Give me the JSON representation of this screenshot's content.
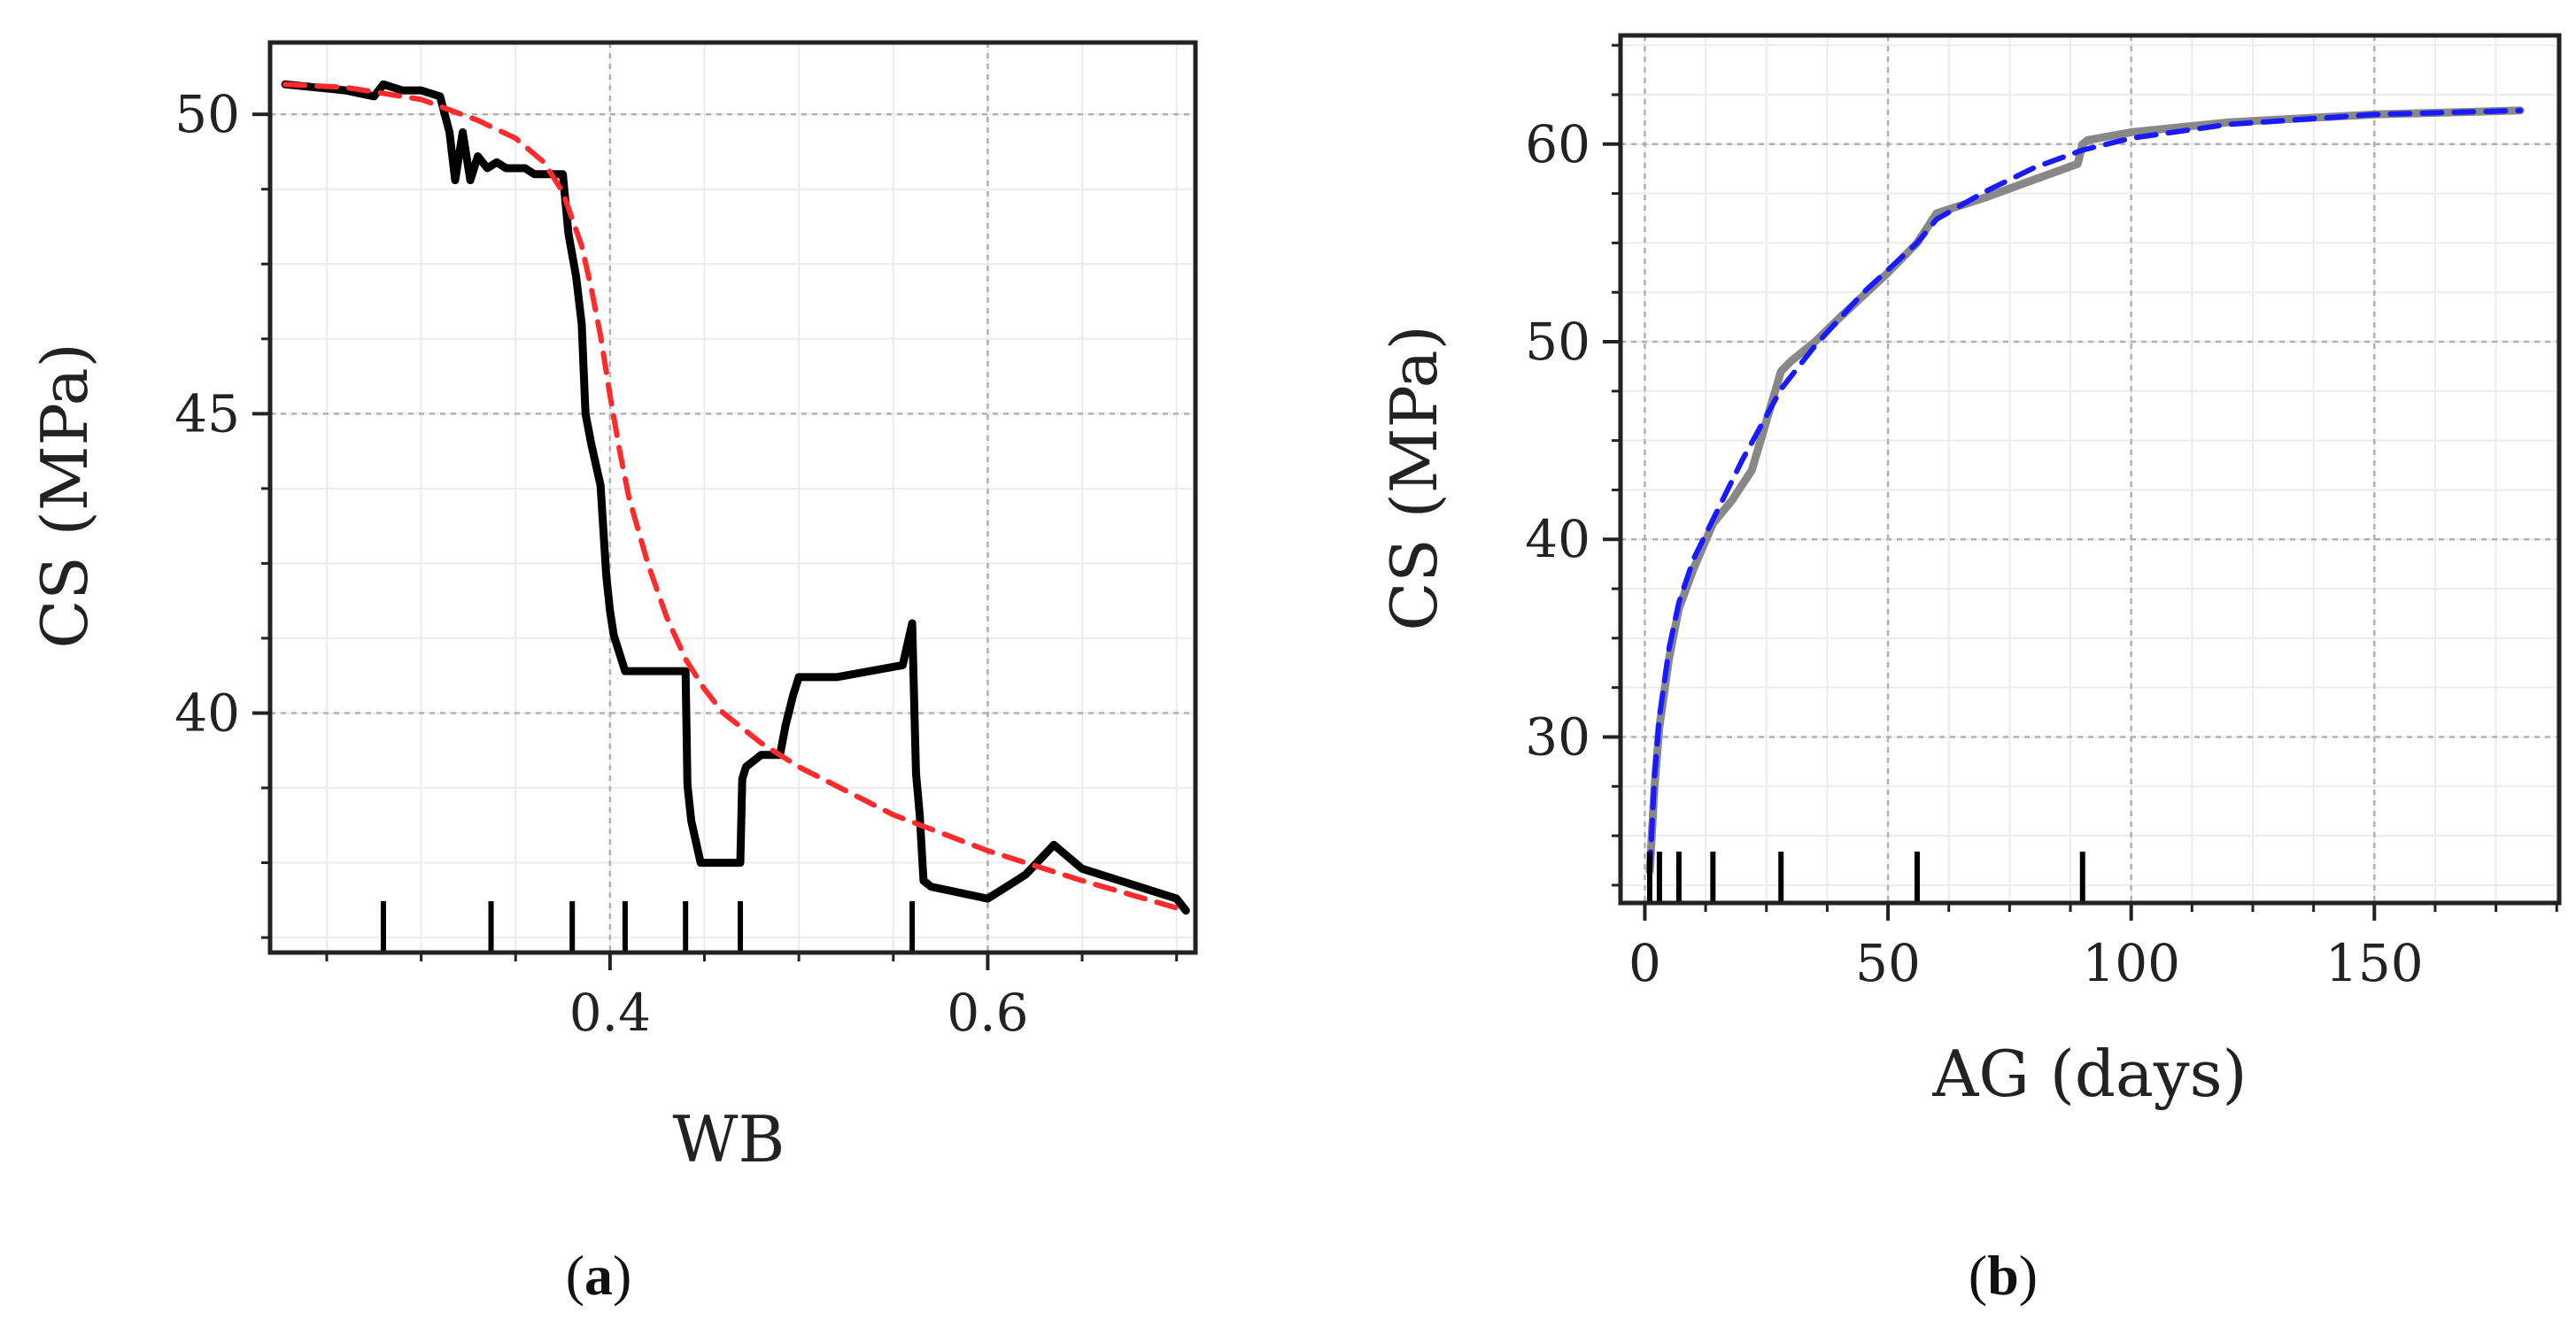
{
  "chart_data": [
    {
      "type": "line",
      "panel_label": "a",
      "xlabel": "WB",
      "ylabel": "CS (MPa)",
      "xlim": [
        0.22,
        0.71
      ],
      "ylim": [
        36.0,
        51.2
      ],
      "xticks": [
        0.4,
        0.6
      ],
      "xtick_labels": [
        "0.4",
        "0.6"
      ],
      "yticks": [
        40,
        45,
        50
      ],
      "ytick_labels": [
        "40",
        "45",
        "50"
      ],
      "grid": true,
      "rug": [
        0.28,
        0.337,
        0.38,
        0.408,
        0.44,
        0.469,
        0.56
      ],
      "series": [
        {
          "style": "solid",
          "color": "#000000",
          "x": [
            0.228,
            0.26,
            0.275,
            0.28,
            0.29,
            0.3,
            0.31,
            0.315,
            0.318,
            0.322,
            0.326,
            0.33,
            0.335,
            0.34,
            0.345,
            0.355,
            0.36,
            0.375,
            0.378,
            0.382,
            0.385,
            0.387,
            0.39,
            0.395,
            0.398,
            0.4,
            0.402,
            0.405,
            0.408,
            0.44,
            0.441,
            0.443,
            0.448,
            0.469,
            0.47,
            0.472,
            0.48,
            0.49,
            0.493,
            0.497,
            0.5,
            0.505,
            0.52,
            0.555,
            0.56,
            0.562,
            0.564,
            0.566,
            0.57,
            0.6,
            0.62,
            0.635,
            0.65,
            0.7,
            0.705
          ],
          "y": [
            50.5,
            50.4,
            50.3,
            50.5,
            50.4,
            50.4,
            50.3,
            49.7,
            48.9,
            49.7,
            48.9,
            49.3,
            49.1,
            49.2,
            49.1,
            49.1,
            49.0,
            49.0,
            48.0,
            47.3,
            46.5,
            45.0,
            44.5,
            43.8,
            42.3,
            41.7,
            41.3,
            41.0,
            40.7,
            40.7,
            38.8,
            38.2,
            37.5,
            37.5,
            38.9,
            39.1,
            39.3,
            39.3,
            39.8,
            40.3,
            40.6,
            40.6,
            40.6,
            40.8,
            41.5,
            39.0,
            38.3,
            37.2,
            37.1,
            36.9,
            37.3,
            37.8,
            37.4,
            36.9,
            36.7
          ]
        },
        {
          "style": "dashed",
          "color": "#ff2a2a",
          "x": [
            0.228,
            0.26,
            0.3,
            0.33,
            0.35,
            0.365,
            0.375,
            0.385,
            0.39,
            0.395,
            0.4,
            0.405,
            0.41,
            0.42,
            0.43,
            0.44,
            0.45,
            0.46,
            0.48,
            0.5,
            0.55,
            0.6,
            0.65,
            0.705
          ],
          "y": [
            50.5,
            50.45,
            50.25,
            49.9,
            49.6,
            49.2,
            48.7,
            47.8,
            47.1,
            46.3,
            45.3,
            44.4,
            43.6,
            42.5,
            41.6,
            40.9,
            40.4,
            40.0,
            39.5,
            39.1,
            38.3,
            37.7,
            37.2,
            36.7
          ]
        }
      ]
    },
    {
      "type": "line",
      "panel_label": "b",
      "xlabel": "AG (days)",
      "ylabel": "CS (MPa)",
      "xlim": [
        -5,
        188
      ],
      "ylim": [
        21.6,
        65.5
      ],
      "xticks": [
        0,
        50,
        100,
        150
      ],
      "xtick_labels": [
        "0",
        "50",
        "100",
        "150"
      ],
      "yticks": [
        30,
        40,
        50,
        60
      ],
      "ytick_labels": [
        "30",
        "40",
        "50",
        "60"
      ],
      "grid": true,
      "rug": [
        1,
        3,
        7,
        14,
        28,
        56,
        90
      ],
      "series": [
        {
          "style": "solid",
          "color": "#888888",
          "x": [
            1,
            2,
            3,
            5,
            7,
            10,
            14,
            18,
            22,
            25,
            28,
            30,
            35,
            40,
            50,
            56,
            60,
            70,
            80,
            89,
            90,
            91,
            100,
            120,
            150,
            180
          ],
          "y": [
            23.2,
            27.5,
            30.5,
            34.0,
            36.5,
            38.5,
            40.8,
            42.0,
            43.5,
            46.0,
            48.5,
            49.0,
            50.0,
            51.2,
            53.5,
            55.0,
            56.5,
            57.3,
            58.2,
            59.0,
            60.0,
            60.2,
            60.6,
            61.1,
            61.5,
            61.7
          ]
        },
        {
          "style": "dashed",
          "color": "#1a1aff",
          "x": [
            1,
            2,
            3,
            5,
            7,
            10,
            14,
            20,
            28,
            35,
            45,
            56,
            60,
            70,
            80,
            90,
            100,
            120,
            150,
            180
          ],
          "y": [
            23.2,
            28.0,
            31.0,
            34.5,
            36.8,
            39.0,
            41.0,
            44.0,
            47.6,
            49.8,
            52.5,
            55.0,
            56.2,
            57.6,
            58.8,
            59.7,
            60.3,
            61.0,
            61.5,
            61.7
          ]
        }
      ]
    }
  ]
}
